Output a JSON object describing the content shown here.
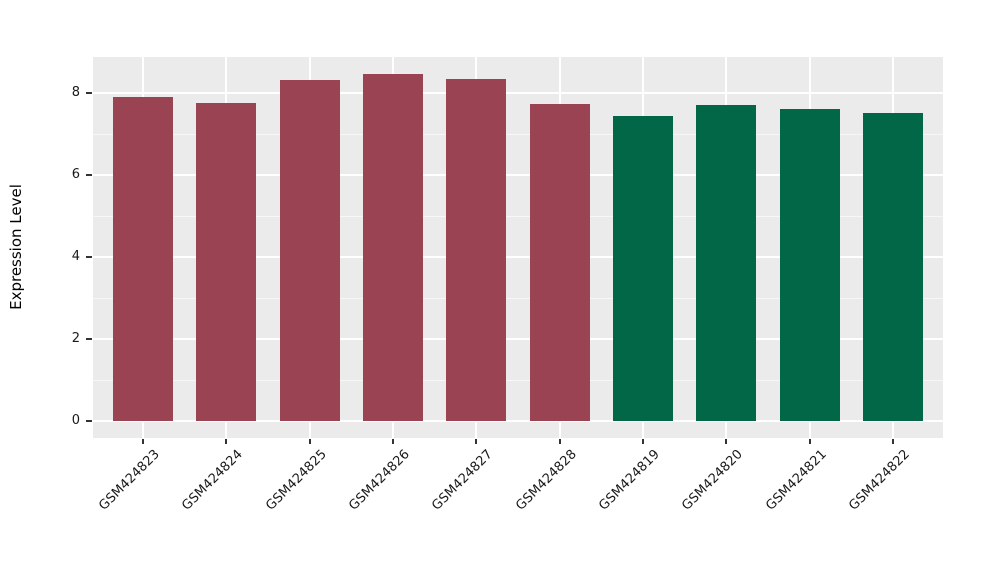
{
  "figure": {
    "background_color": "#ffffff",
    "panel_background_color": "#ebebeb",
    "gridline_color": "#ffffff",
    "tick_color": "#333333",
    "text_color": "#1a1a1a"
  },
  "chart_data": {
    "type": "bar",
    "title": "",
    "xlabel": "",
    "ylabel": "Expression Level",
    "categories": [
      "GSM424823",
      "GSM424824",
      "GSM424825",
      "GSM424826",
      "GSM424827",
      "GSM424828",
      "GSM424819",
      "GSM424820",
      "GSM424821",
      "GSM424822"
    ],
    "values": [
      7.9,
      7.75,
      8.31,
      8.46,
      8.35,
      7.73,
      7.45,
      7.7,
      7.6,
      7.51
    ],
    "bar_colors": [
      "#9a4453",
      "#9a4453",
      "#9a4453",
      "#9a4453",
      "#9a4453",
      "#9a4453",
      "#026747",
      "#026747",
      "#026747",
      "#026747"
    ],
    "ylim": [
      0,
      8.9
    ],
    "yticks": [
      0,
      2,
      4,
      6,
      8
    ],
    "yticks_minor": [
      1,
      3,
      5,
      7
    ],
    "grid": "major and minor horizontal white gridlines, major vertical gridlines at category centers, on gray panel",
    "legend": "none",
    "x_tick_label_rotation_deg": 45
  }
}
